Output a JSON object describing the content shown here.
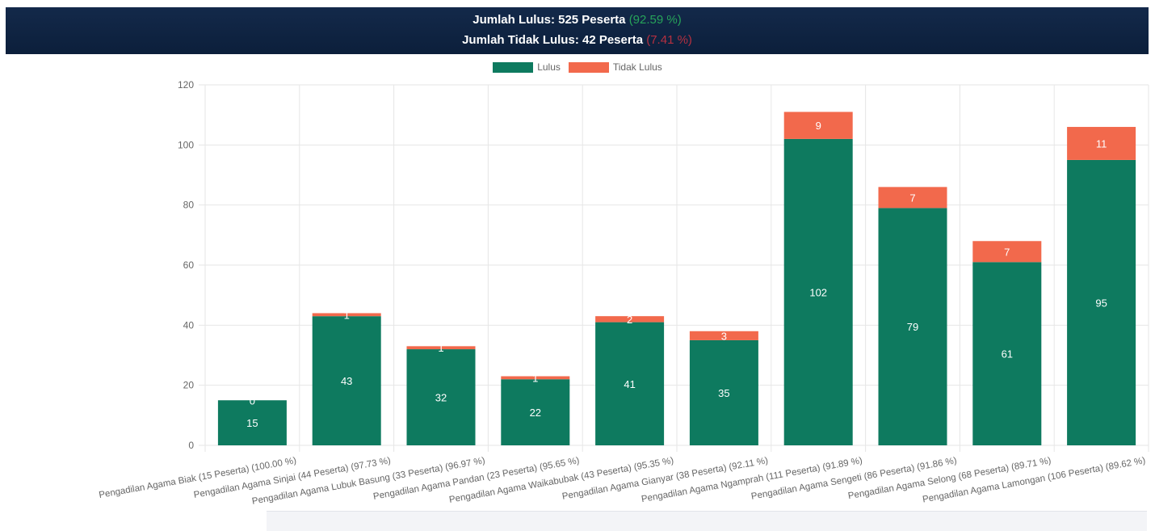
{
  "header": {
    "passed_text": "Jumlah Lulus: 525 Peserta",
    "passed_pct": "(92.59 %)",
    "failed_text": "Jumlah Tidak Lulus: 42 Peserta",
    "failed_pct": "(7.41 %)"
  },
  "colors": {
    "passed": "#0e7a5f",
    "failed": "#f2694c",
    "header_bg": "#0f2443"
  },
  "chart_data": {
    "type": "bar",
    "stacked": true,
    "legend_position": "top-center",
    "grid": true,
    "ylim": [
      0,
      120
    ],
    "yticks": [
      0,
      20,
      40,
      60,
      80,
      100,
      120
    ],
    "categories": [
      "Pengadilan Agama Biak (15 Peserta) (100.00 %)",
      "Pengadilan Agama Sinjai (44 Peserta) (97.73 %)",
      "Pengadilan Agama Lubuk Basung (33 Peserta) (96.97 %)",
      "Pengadilan Agama Pandan (23 Peserta) (95.65 %)",
      "Pengadilan Agama Waikabubak (43 Peserta) (95.35 %)",
      "Pengadilan Agama Gianyar (38 Peserta) (92.11 %)",
      "Pengadilan Agama Ngamprah (111 Peserta) (91.89 %)",
      "Pengadilan Agama Sengeti (86 Peserta) (91.86 %)",
      "Pengadilan Agama Selong (68 Peserta) (89.71 %)",
      "Pengadilan Agama Lamongan (106 Peserta) (89.62 %)"
    ],
    "series": [
      {
        "name": "Lulus",
        "values": [
          15,
          43,
          32,
          22,
          41,
          35,
          102,
          79,
          61,
          95
        ]
      },
      {
        "name": "Tidak Lulus",
        "values": [
          0,
          1,
          1,
          1,
          2,
          3,
          9,
          7,
          7,
          11
        ]
      }
    ]
  }
}
